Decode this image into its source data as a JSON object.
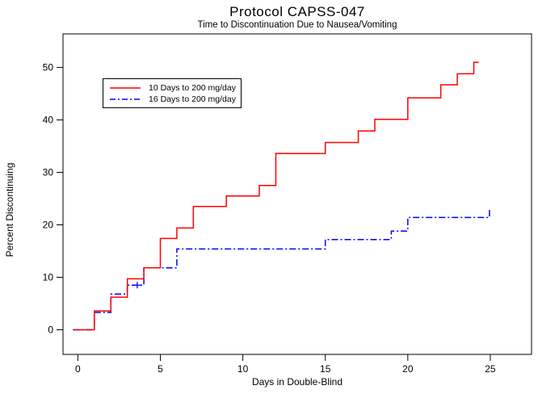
{
  "title": "Protocol CAPSS-047",
  "subtitle": "Time to Discontinuation Due to Nausea/Vomiting",
  "chart_data": {
    "type": "line",
    "subtype": "step-function-survival",
    "title": "Protocol CAPSS-047",
    "subtitle": "Time to Discontinuation Due to Nausea/Vomiting",
    "xlabel": "Days in Double-Blind",
    "ylabel": "Percent Discontinuing",
    "xlim": [
      -0.9,
      27.5
    ],
    "ylim": [
      -4.7,
      56.4
    ],
    "x_ticks": [
      0,
      5,
      10,
      15,
      20,
      25
    ],
    "y_ticks": [
      0,
      10,
      20,
      30,
      40,
      50
    ],
    "grid": false,
    "legend_position": "upper-left-inside",
    "frame_color": "#000000",
    "series": [
      {
        "name": "16 Days to 200 mg/day",
        "color": "#0000ff",
        "line_style": "dash-dot",
        "start_day": -0.3,
        "end_day": 24.95,
        "points": [
          [
            0,
            0
          ],
          [
            1,
            3.3
          ],
          [
            2,
            6.8
          ],
          [
            3,
            8.5
          ],
          [
            4,
            11.8
          ],
          [
            6,
            15.4
          ],
          [
            15,
            17.2
          ],
          [
            19,
            18.8
          ],
          [
            20,
            21.4
          ],
          [
            24.95,
            23.1
          ]
        ],
        "censor_marks": [
          [
            3.6,
            8.5
          ]
        ]
      },
      {
        "name": "10 Days to 200 mg/day",
        "color": "#ff0000",
        "line_style": "solid",
        "start_day": -0.25,
        "end_day": 24.3,
        "points": [
          [
            0,
            0
          ],
          [
            1,
            3.6
          ],
          [
            2,
            6.2
          ],
          [
            3,
            9.7
          ],
          [
            4,
            11.8
          ],
          [
            5,
            17.4
          ],
          [
            6,
            19.4
          ],
          [
            7,
            23.5
          ],
          [
            9,
            25.5
          ],
          [
            11,
            27.5
          ],
          [
            12,
            33.6
          ],
          [
            15,
            35.7
          ],
          [
            17,
            37.9
          ],
          [
            18,
            40.1
          ],
          [
            20,
            44.2
          ],
          [
            22,
            46.7
          ],
          [
            23,
            48.8
          ],
          [
            24,
            51.0
          ]
        ],
        "censor_marks": []
      }
    ],
    "legend_order": [
      "10 Days to 200 mg/day",
      "16 Days to 200 mg/day"
    ]
  }
}
